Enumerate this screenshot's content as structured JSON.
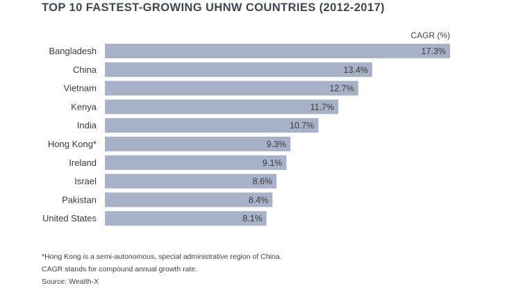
{
  "chart_data": {
    "type": "bar",
    "orientation": "horizontal",
    "title": "TOP 10 FASTEST-GROWING UHNW COUNTRIES (2012-2017)",
    "value_header": "CAGR (%)",
    "categories": [
      "Bangladesh",
      "China",
      "Vietnam",
      "Kenya",
      "India",
      "Hong Kong*",
      "Ireland",
      "Israel",
      "Pakistan",
      "United States"
    ],
    "values": [
      17.3,
      13.4,
      12.7,
      11.7,
      10.7,
      9.3,
      9.1,
      8.6,
      8.4,
      8.1
    ],
    "data_labels": [
      "17.3%",
      "13.4%",
      "12.7%",
      "11.7%",
      "10.7%",
      "9.3%",
      "9.1%",
      "8.6%",
      "8.4%",
      "8.1%"
    ],
    "xlim": [
      0,
      17.3
    ],
    "grid": false,
    "bar_color": "#a7b2c9"
  },
  "notes": [
    "*Hong Kong is a semi-autonomous, special administrative region of China.",
    "CAGR stands for compound annual growth rate.",
    "Source: Wealth-X"
  ]
}
